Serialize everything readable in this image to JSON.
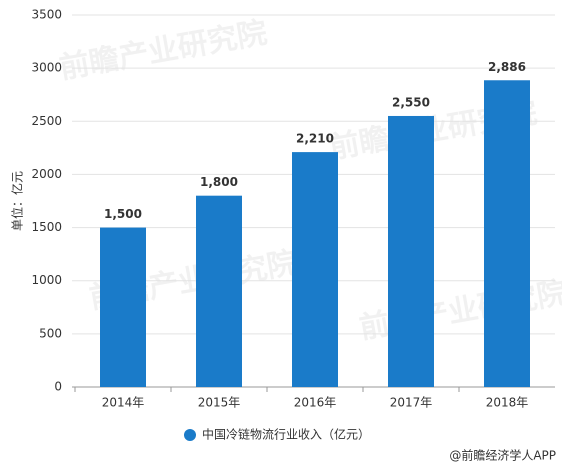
{
  "chart_data": {
    "type": "bar",
    "y_label": "单位：亿元",
    "categories": [
      "2014年",
      "2015年",
      "2016年",
      "2017年",
      "2018年"
    ],
    "series": [
      {
        "name": "中国冷链物流行业收入（亿元）",
        "color": "#1a7bc9",
        "values": [
          1500,
          1800,
          2210,
          2550,
          2886
        ],
        "value_labels": [
          "1,500",
          "1,800",
          "2,210",
          "2,550",
          "2,886"
        ]
      }
    ],
    "ylim": [
      0,
      3500
    ],
    "yticks": [
      0,
      500,
      1000,
      1500,
      2000,
      2500,
      3000,
      3500
    ],
    "grid": true,
    "legend": "bottom",
    "watermark": "前瞻产业研究院",
    "source": "@前瞻经济学人APP"
  }
}
